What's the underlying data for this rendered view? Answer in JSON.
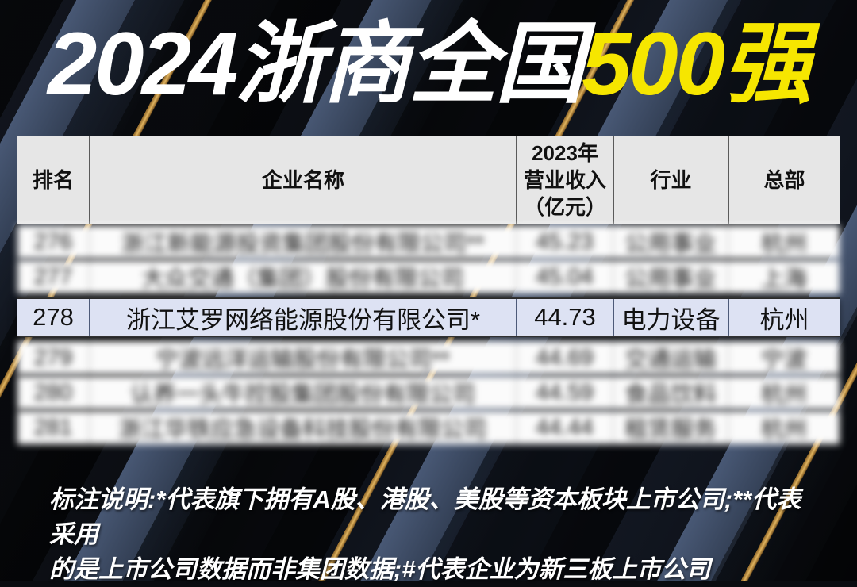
{
  "poster": {
    "title": {
      "main": "2024浙商全国",
      "highlight": "500强"
    },
    "colors": {
      "title_highlight_yellow": "#f6e600",
      "title_white": "#ffffff",
      "header_bg": "#e6e6e6",
      "row_bg": "#fbfbfb",
      "highlight_row_bg": "#dde2f3",
      "stripe_gold": "#e0b35e",
      "stripe_steel_blue": "#52648466",
      "background_base": "#0a0c10"
    },
    "table": {
      "header": {
        "rank": "排名",
        "company": "企业名称",
        "revenue_line1": "2023年",
        "revenue_line2": "营业收入",
        "revenue_line3": "（亿元）",
        "industry": "行业",
        "hq": "总部"
      },
      "rows": [
        {
          "rank": "276",
          "company": "浙江新能源投资集团股份有限公司**",
          "revenue": "45.23",
          "industry": "公用事业",
          "hq": "杭州",
          "blurred": true
        },
        {
          "rank": "277",
          "company": "大众交通（集团）股份有限公司",
          "revenue": "45.04",
          "industry": "公用事业",
          "hq": "上海",
          "blurred": true
        },
        {
          "rank": "278",
          "company": "浙江艾罗网络能源股份有限公司*",
          "revenue": "44.73",
          "industry": "电力设备",
          "hq": "杭州",
          "blurred": false,
          "highlighted": true
        },
        {
          "rank": "279",
          "company": "宁波远洋运输股份有限公司**",
          "revenue": "44.69",
          "industry": "交通运输",
          "hq": "宁波",
          "blurred": true
        },
        {
          "rank": "280",
          "company": "认养一头牛控股集团股份有限公司",
          "revenue": "44.59",
          "industry": "食品饮料",
          "hq": "杭州",
          "blurred": true
        },
        {
          "rank": "281",
          "company": "浙江华铁应急设备科技股份有限公司",
          "revenue": "44.44",
          "industry": "租赁服务",
          "hq": "杭州",
          "blurred": true
        }
      ]
    },
    "footnote": {
      "line1": "标注说明:*代表旗下拥有A股、港股、美股等资本板块上市公司;**代表采用",
      "line2": "的是上市公司数据而非集团数据;#代表企业为新三板上市公司"
    }
  }
}
